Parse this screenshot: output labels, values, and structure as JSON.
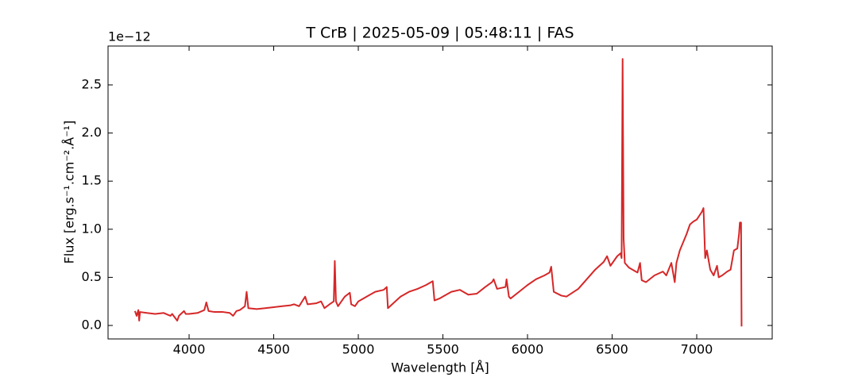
{
  "chart_data": {
    "type": "line",
    "title": "T CrB | 2025-05-09 | 05:48:11 | FAS",
    "x_label": "Wavelength [Å]",
    "y_label": "Flux [erg.s⁻¹.cm⁻².Å⁻¹]",
    "y_offset_label": "1e−12",
    "xlim": [
      3521,
      7446
    ],
    "ylim": [
      -0.14,
      2.904
    ],
    "xticks": [
      4000,
      4500,
      5000,
      5500,
      6000,
      6500,
      7000
    ],
    "yticks": [
      {
        "value": 0,
        "label": "0.0"
      },
      0.5,
      {
        "value": 1,
        "label": "1.0"
      },
      1.5,
      {
        "value": 2,
        "label": "2.0"
      },
      2.5
    ],
    "grid": false,
    "series": [
      {
        "color": "#d62728",
        "x": [
          3680,
          3690,
          3700,
          3705,
          3710,
          3750,
          3800,
          3850,
          3890,
          3900,
          3930,
          3940,
          3970,
          3980,
          4000,
          4050,
          4090,
          4102,
          4115,
          4150,
          4200,
          4240,
          4260,
          4280,
          4300,
          4330,
          4340,
          4350,
          4400,
          4450,
          4500,
          4550,
          4600,
          4620,
          4650,
          4686,
          4700,
          4750,
          4780,
          4800,
          4830,
          4855,
          4861,
          4868,
          4880,
          4920,
          4950,
          4958,
          4980,
          5000,
          5050,
          5100,
          5150,
          5168,
          5175,
          5200,
          5250,
          5300,
          5350,
          5400,
          5440,
          5450,
          5480,
          5500,
          5550,
          5600,
          5650,
          5700,
          5750,
          5790,
          5800,
          5820,
          5870,
          5876,
          5890,
          5900,
          5950,
          6000,
          6050,
          6100,
          6130,
          6140,
          6155,
          6200,
          6230,
          6300,
          6350,
          6400,
          6450,
          6470,
          6490,
          6530,
          6550,
          6556,
          6562,
          6568,
          6575,
          6600,
          6650,
          6665,
          6675,
          6700,
          6750,
          6800,
          6820,
          6850,
          6870,
          6880,
          6900,
          6940,
          6960,
          6980,
          7000,
          7030,
          7040,
          7050,
          7060,
          7080,
          7100,
          7120,
          7130,
          7150,
          7180,
          7200,
          7220,
          7240,
          7250,
          7255,
          7262,
          7265
        ],
        "values": [
          0.15,
          0.1,
          0.16,
          0.05,
          0.14,
          0.13,
          0.12,
          0.13,
          0.1,
          0.12,
          0.05,
          0.1,
          0.15,
          0.12,
          0.12,
          0.13,
          0.16,
          0.24,
          0.15,
          0.14,
          0.14,
          0.13,
          0.1,
          0.15,
          0.16,
          0.2,
          0.35,
          0.18,
          0.17,
          0.18,
          0.19,
          0.2,
          0.21,
          0.22,
          0.2,
          0.3,
          0.22,
          0.23,
          0.25,
          0.18,
          0.22,
          0.25,
          0.67,
          0.25,
          0.2,
          0.3,
          0.34,
          0.22,
          0.2,
          0.25,
          0.3,
          0.35,
          0.37,
          0.4,
          0.18,
          0.22,
          0.3,
          0.35,
          0.38,
          0.42,
          0.46,
          0.26,
          0.28,
          0.3,
          0.35,
          0.37,
          0.32,
          0.33,
          0.4,
          0.45,
          0.48,
          0.38,
          0.4,
          0.48,
          0.3,
          0.28,
          0.35,
          0.42,
          0.48,
          0.52,
          0.55,
          0.61,
          0.35,
          0.31,
          0.3,
          0.38,
          0.48,
          0.58,
          0.66,
          0.72,
          0.62,
          0.72,
          0.75,
          0.7,
          2.77,
          0.9,
          0.65,
          0.6,
          0.55,
          0.65,
          0.47,
          0.45,
          0.52,
          0.56,
          0.52,
          0.65,
          0.45,
          0.65,
          0.78,
          0.95,
          1.05,
          1.08,
          1.1,
          1.18,
          1.22,
          0.7,
          0.78,
          0.58,
          0.52,
          0.62,
          0.5,
          0.52,
          0.56,
          0.58,
          0.78,
          0.8,
          0.95,
          1.07,
          1.07,
          -0.01
        ]
      }
    ]
  }
}
